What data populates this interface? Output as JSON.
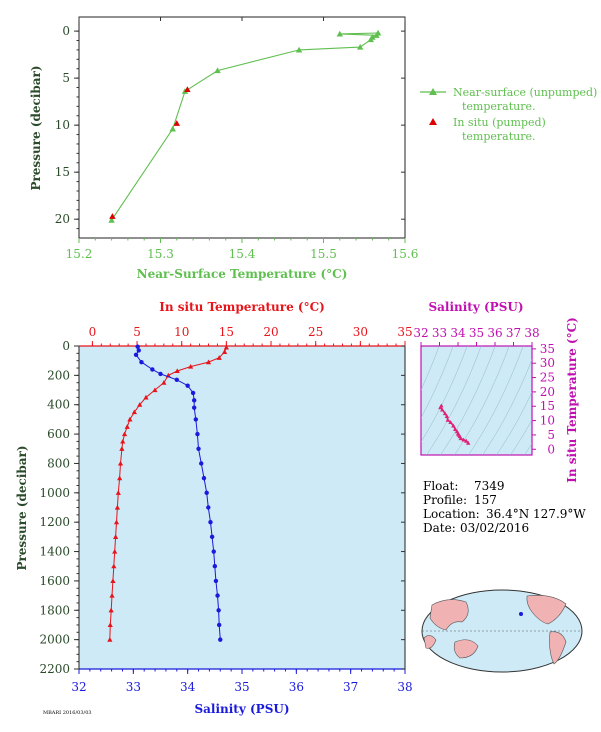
{
  "chart_data": [
    {
      "type": "scatter",
      "title": "",
      "xlabel": "Near-Surface Temperature (°C)",
      "ylabel": "Pressure (decibar)",
      "xlim": [
        15.2,
        15.6
      ],
      "ylim": [
        22,
        -1.5
      ],
      "xticks": [
        "15.2",
        "15.3",
        "15.4",
        "15.5",
        "15.6"
      ],
      "yticks": [
        "0",
        "5",
        "10",
        "15",
        "20"
      ],
      "legend": "right",
      "series": [
        {
          "name": "Near-surface (unpumped) temperature.",
          "color": "#5fbf4f",
          "points": [
            [
              15.567,
              0.2
            ],
            [
              15.52,
              0.3
            ],
            [
              15.565,
              0.45
            ],
            [
              15.56,
              0.65
            ],
            [
              15.558,
              0.9
            ],
            [
              15.545,
              1.7
            ],
            [
              15.47,
              2.0
            ],
            [
              15.37,
              4.2
            ],
            [
              15.33,
              6.4
            ],
            [
              15.315,
              10.4
            ],
            [
              15.24,
              20.1
            ]
          ]
        },
        {
          "name": "In situ (pumped) temperature.",
          "color": "#dd0000",
          "points": [
            [
              15.333,
              6.2
            ],
            [
              15.32,
              9.8
            ],
            [
              15.241,
              19.7
            ]
          ]
        }
      ]
    },
    {
      "type": "scatter",
      "title": "",
      "xlabel_top": "In situ Temperature (°C)",
      "xlabel_bottom": "Salinity (PSU)",
      "ylabel": "Pressure (decibar)",
      "temp_lim": [
        -1.5,
        35
      ],
      "sal_lim": [
        32,
        38
      ],
      "ylim": [
        0,
        2200
      ],
      "temp_ticks": [
        "0",
        "5",
        "10",
        "15",
        "20",
        "25",
        "30",
        "35"
      ],
      "sal_ticks": [
        "32",
        "33",
        "34",
        "35",
        "36",
        "37",
        "38"
      ],
      "yticks": [
        "0",
        "200",
        "400",
        "600",
        "800",
        "1000",
        "1200",
        "1400",
        "1600",
        "1800",
        "2000",
        "2200"
      ],
      "temperature": {
        "color": "#e8141a",
        "points": [
          [
            15,
            10
          ],
          [
            14.8,
            40
          ],
          [
            14.2,
            80
          ],
          [
            13,
            110
          ],
          [
            11,
            140
          ],
          [
            9.5,
            170
          ],
          [
            8.5,
            200
          ],
          [
            8,
            250
          ],
          [
            7,
            300
          ],
          [
            6,
            350
          ],
          [
            5.3,
            400
          ],
          [
            4.7,
            450
          ],
          [
            4.2,
            500
          ],
          [
            3.9,
            550
          ],
          [
            3.6,
            600
          ],
          [
            3.4,
            650
          ],
          [
            3.3,
            700
          ],
          [
            3.15,
            800
          ],
          [
            3.05,
            900
          ],
          [
            2.9,
            1000
          ],
          [
            2.8,
            1100
          ],
          [
            2.7,
            1200
          ],
          [
            2.6,
            1300
          ],
          [
            2.5,
            1400
          ],
          [
            2.4,
            1500
          ],
          [
            2.3,
            1600
          ],
          [
            2.2,
            1700
          ],
          [
            2.1,
            1800
          ],
          [
            2.0,
            1900
          ],
          [
            1.95,
            2000
          ]
        ]
      },
      "salinity": {
        "color": "#1a1adc",
        "points": [
          [
            33.08,
            5
          ],
          [
            33.1,
            30
          ],
          [
            33.05,
            60
          ],
          [
            33.15,
            110
          ],
          [
            33.35,
            160
          ],
          [
            33.5,
            190
          ],
          [
            33.8,
            230
          ],
          [
            34.0,
            270
          ],
          [
            34.1,
            320
          ],
          [
            34.12,
            370
          ],
          [
            34.12,
            420
          ],
          [
            34.15,
            500
          ],
          [
            34.18,
            600
          ],
          [
            34.2,
            700
          ],
          [
            34.25,
            800
          ],
          [
            34.3,
            900
          ],
          [
            34.35,
            1000
          ],
          [
            34.38,
            1100
          ],
          [
            34.42,
            1200
          ],
          [
            34.45,
            1300
          ],
          [
            34.48,
            1400
          ],
          [
            34.5,
            1500
          ],
          [
            34.52,
            1600
          ],
          [
            34.55,
            1700
          ],
          [
            34.57,
            1800
          ],
          [
            34.58,
            1900
          ],
          [
            34.6,
            2000
          ]
        ]
      }
    },
    {
      "type": "scatter",
      "title": "",
      "xlabel": "Salinity (PSU)",
      "ylabel": "In situ Temperature (°C)",
      "xlim": [
        32,
        38
      ],
      "ylim": [
        -2,
        36
      ],
      "xticks": [
        "32",
        "33",
        "34",
        "35",
        "36",
        "37",
        "38"
      ],
      "yticks": [
        "0",
        "5",
        "10",
        "15",
        "20",
        "25",
        "30",
        "35"
      ],
      "ts_points": [
        [
          33.1,
          15.2
        ],
        [
          33.05,
          14.6
        ],
        [
          33.15,
          13.8
        ],
        [
          33.3,
          12.5
        ],
        [
          33.4,
          11.5
        ],
        [
          33.45,
          10.2
        ],
        [
          33.6,
          9.4
        ],
        [
          33.75,
          8.2
        ],
        [
          33.85,
          7.0
        ],
        [
          33.95,
          6.2
        ],
        [
          34.0,
          5.4
        ],
        [
          34.05,
          5.0
        ],
        [
          34.1,
          4.5
        ],
        [
          34.15,
          3.8
        ],
        [
          34.3,
          3.3
        ],
        [
          34.45,
          2.9
        ],
        [
          34.55,
          2.2
        ]
      ]
    }
  ],
  "info": {
    "float_label": "Float:",
    "float_value": "7349",
    "profile_label": "Profile:",
    "profile_value": "157",
    "location_label": "Location:",
    "location_value": "36.4°N  127.9°W",
    "date_label": "Date:",
    "date_value": "03/02/2016"
  },
  "footer_stamp": "MBARI 2016/03/03"
}
